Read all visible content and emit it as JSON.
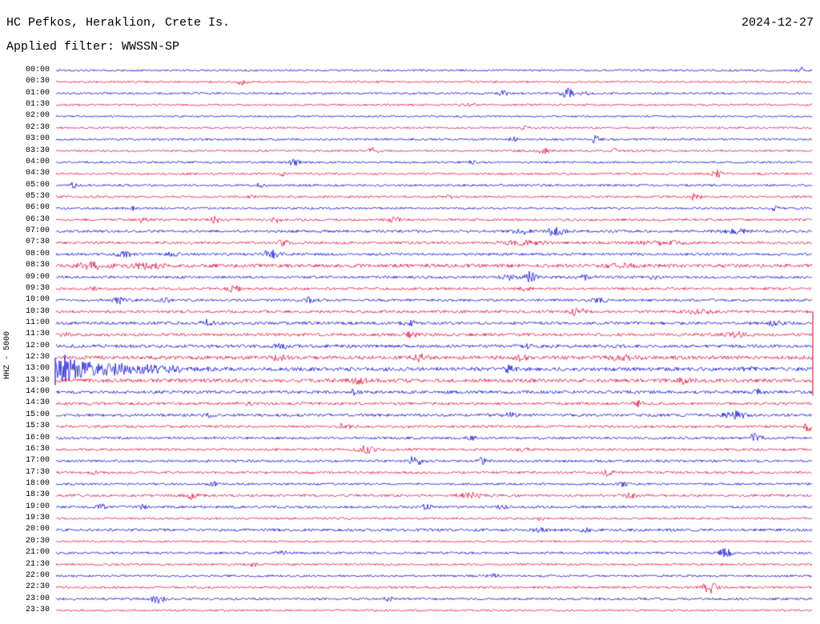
{
  "header": {
    "station_title": "HC Pefkos, Heraklion, Crete Is.",
    "date": "2024-12-27",
    "filter_label": "Applied filter: WWSSN-SP"
  },
  "axis": {
    "scale_label": "HHZ - 5000"
  },
  "chart_data": {
    "type": "seismogram-helicorder",
    "title": "HC Pefkos, Heraklion, Crete Is.",
    "date": "2024-12-27",
    "filter": "WWSSN-SP",
    "channel_scale": "HHZ - 5000",
    "row_interval_minutes": 30,
    "trace_color_order": [
      "blue",
      "red"
    ],
    "colors": {
      "blue": "#1212d0",
      "red": "#e01945",
      "text": "#000000",
      "background": "#ffffff"
    },
    "rows": [
      {
        "time": "00:00",
        "color": "blue",
        "noise": 1.2,
        "bursts": [
          [
            0.985,
            3.5,
            0.006
          ]
        ]
      },
      {
        "time": "00:30",
        "color": "red",
        "noise": 1.2,
        "bursts": [
          [
            0.247,
            4,
            0.006
          ]
        ]
      },
      {
        "time": "01:00",
        "color": "blue",
        "noise": 1.3,
        "bursts": [
          [
            0.592,
            3,
            0.006
          ],
          [
            0.676,
            6,
            0.008
          ],
          [
            0.7,
            3,
            0.005
          ]
        ]
      },
      {
        "time": "01:30",
        "color": "red",
        "noise": 1.2,
        "bursts": [
          [
            0.55,
            1.5,
            0.01
          ]
        ]
      },
      {
        "time": "02:00",
        "color": "blue",
        "noise": 1.1,
        "bursts": []
      },
      {
        "time": "02:30",
        "color": "red",
        "noise": 1.2,
        "bursts": [
          [
            0.62,
            1.8,
            0.006
          ]
        ]
      },
      {
        "time": "03:00",
        "color": "blue",
        "noise": 1.3,
        "bursts": [
          [
            0.605,
            2.5,
            0.005
          ],
          [
            0.712,
            4.5,
            0.007
          ]
        ]
      },
      {
        "time": "03:30",
        "color": "red",
        "noise": 1.3,
        "bursts": [
          [
            0.42,
            3.5,
            0.008
          ],
          [
            0.645,
            4,
            0.006
          ],
          [
            0.74,
            2.5,
            0.005
          ]
        ]
      },
      {
        "time": "04:00",
        "color": "blue",
        "noise": 1.3,
        "bursts": [
          [
            0.315,
            3.5,
            0.007
          ],
          [
            0.55,
            1.8,
            0.005
          ]
        ]
      },
      {
        "time": "04:30",
        "color": "red",
        "noise": 1.3,
        "bursts": [
          [
            0.3,
            2,
            0.005
          ],
          [
            0.875,
            4,
            0.007
          ]
        ]
      },
      {
        "time": "05:00",
        "color": "blue",
        "noise": 1.3,
        "bursts": [
          [
            0.022,
            3.5,
            0.005
          ],
          [
            0.27,
            2,
            0.005
          ]
        ]
      },
      {
        "time": "05:30",
        "color": "red",
        "noise": 1.3,
        "bursts": [
          [
            0.26,
            2,
            0.005
          ],
          [
            0.52,
            2,
            0.005
          ],
          [
            0.845,
            4,
            0.007
          ]
        ]
      },
      {
        "time": "06:00",
        "color": "blue",
        "noise": 1.3,
        "bursts": [
          [
            0.1,
            2.5,
            0.006
          ],
          [
            0.95,
            2.5,
            0.005
          ]
        ]
      },
      {
        "time": "06:30",
        "color": "red",
        "noise": 1.5,
        "bursts": [
          [
            0.115,
            3,
            0.006
          ],
          [
            0.21,
            3.5,
            0.007
          ],
          [
            0.29,
            4,
            0.008
          ],
          [
            0.445,
            4,
            0.008
          ]
        ]
      },
      {
        "time": "07:00",
        "color": "blue",
        "noise": 1.6,
        "bursts": [
          [
            0.615,
            3.5,
            0.01
          ],
          [
            0.66,
            5,
            0.012
          ],
          [
            0.9,
            2,
            0.02
          ]
        ]
      },
      {
        "time": "07:30",
        "color": "red",
        "noise": 1.6,
        "bursts": [
          [
            0.3,
            3,
            0.007
          ],
          [
            0.62,
            2.2,
            0.03
          ],
          [
            0.8,
            2.2,
            0.03
          ]
        ]
      },
      {
        "time": "08:00",
        "color": "blue",
        "noise": 1.6,
        "bursts": [
          [
            0.09,
            3,
            0.012
          ],
          [
            0.155,
            2.5,
            0.008
          ],
          [
            0.285,
            5,
            0.012
          ]
        ]
      },
      {
        "time": "08:30",
        "color": "red",
        "noise": 2.2,
        "bursts": [
          [
            0.05,
            3.5,
            0.02
          ],
          [
            0.12,
            3,
            0.02
          ],
          [
            0.75,
            2,
            0.02
          ]
        ]
      },
      {
        "time": "09:00",
        "color": "blue",
        "noise": 1.6,
        "bursts": [
          [
            0.6,
            3,
            0.01
          ],
          [
            0.627,
            6.5,
            0.007
          ],
          [
            0.7,
            2.5,
            0.01
          ],
          [
            0.79,
            2.5,
            0.006
          ]
        ]
      },
      {
        "time": "09:30",
        "color": "red",
        "noise": 1.5,
        "bursts": [
          [
            0.05,
            2,
            0.005
          ],
          [
            0.235,
            4,
            0.008
          ],
          [
            0.62,
            2,
            0.01
          ]
        ]
      },
      {
        "time": "10:00",
        "color": "blue",
        "noise": 1.6,
        "bursts": [
          [
            0.085,
            3.5,
            0.008
          ],
          [
            0.145,
            3,
            0.006
          ],
          [
            0.335,
            3.5,
            0.006
          ],
          [
            0.72,
            2,
            0.01
          ]
        ]
      },
      {
        "time": "10:30",
        "color": "red",
        "noise": 1.7,
        "bursts": [
          [
            0.69,
            5,
            0.008
          ],
          [
            0.85,
            2,
            0.02
          ]
        ]
      },
      {
        "time": "11:00",
        "color": "blue",
        "noise": 1.8,
        "bursts": [
          [
            0.2,
            4.5,
            0.007
          ],
          [
            0.47,
            2,
            0.01
          ],
          [
            0.95,
            2.5,
            0.01
          ]
        ]
      },
      {
        "time": "11:30",
        "color": "red",
        "noise": 1.9,
        "bursts": [
          [
            0.012,
            3,
            0.005
          ],
          [
            0.47,
            2.5,
            0.01
          ],
          [
            0.9,
            2.5,
            0.015
          ]
        ]
      },
      {
        "time": "12:00",
        "color": "blue",
        "noise": 2.0,
        "bursts": [
          [
            0.3,
            2.2,
            0.01
          ],
          [
            0.62,
            2.2,
            0.008
          ]
        ]
      },
      {
        "time": "12:30",
        "color": "red",
        "noise": 2.3,
        "bursts": [
          [
            0.295,
            4,
            0.008
          ],
          [
            0.48,
            4,
            0.008
          ],
          [
            0.615,
            4.5,
            0.006
          ],
          [
            0.75,
            2.5,
            0.02
          ]
        ]
      },
      {
        "time": "13:00",
        "color": "blue",
        "noise": 2.3,
        "bursts": [
          [
            0.008,
            14,
            0.012
          ],
          [
            0.03,
            8,
            0.02
          ],
          [
            0.07,
            5,
            0.03
          ],
          [
            0.13,
            3.5,
            0.05
          ],
          [
            0.6,
            4,
            0.006
          ],
          [
            0.92,
            2.5,
            0.01
          ]
        ]
      },
      {
        "time": "13:30",
        "color": "red",
        "noise": 2.3,
        "bursts": [
          [
            0.4,
            2.5,
            0.01
          ],
          [
            0.83,
            3,
            0.008
          ]
        ]
      },
      {
        "time": "14:00",
        "color": "blue",
        "noise": 1.9,
        "bursts": [
          [
            0.395,
            4,
            0.006
          ],
          [
            0.93,
            3,
            0.006
          ]
        ]
      },
      {
        "time": "14:30",
        "color": "red",
        "noise": 1.7,
        "bursts": [
          [
            0.25,
            2,
            0.008
          ],
          [
            0.77,
            3,
            0.006
          ]
        ]
      },
      {
        "time": "15:00",
        "color": "blue",
        "noise": 1.7,
        "bursts": [
          [
            0.205,
            3,
            0.007
          ],
          [
            0.6,
            2,
            0.01
          ],
          [
            0.9,
            4,
            0.015
          ]
        ]
      },
      {
        "time": "15:30",
        "color": "red",
        "noise": 1.6,
        "bursts": [
          [
            0.38,
            4,
            0.007
          ],
          [
            0.995,
            5,
            0.006
          ]
        ]
      },
      {
        "time": "16:00",
        "color": "blue",
        "noise": 1.5,
        "bursts": [
          [
            0.55,
            2,
            0.01
          ],
          [
            0.925,
            5,
            0.008
          ]
        ]
      },
      {
        "time": "16:30",
        "color": "red",
        "noise": 1.5,
        "bursts": [
          [
            0.41,
            4,
            0.01
          ],
          [
            0.62,
            2,
            0.008
          ]
        ]
      },
      {
        "time": "17:00",
        "color": "blue",
        "noise": 1.5,
        "bursts": [
          [
            0.475,
            6,
            0.008
          ],
          [
            0.565,
            4,
            0.007
          ]
        ]
      },
      {
        "time": "17:30",
        "color": "red",
        "noise": 1.5,
        "bursts": [
          [
            0.05,
            2,
            0.006
          ],
          [
            0.73,
            3.5,
            0.007
          ]
        ]
      },
      {
        "time": "18:00",
        "color": "blue",
        "noise": 1.4,
        "bursts": [
          [
            0.21,
            2.5,
            0.006
          ],
          [
            0.75,
            2.5,
            0.006
          ]
        ]
      },
      {
        "time": "18:30",
        "color": "red",
        "noise": 1.6,
        "bursts": [
          [
            0.18,
            4,
            0.008
          ],
          [
            0.55,
            2.5,
            0.015
          ],
          [
            0.76,
            3,
            0.007
          ]
        ]
      },
      {
        "time": "19:00",
        "color": "blue",
        "noise": 1.5,
        "bursts": [
          [
            0.06,
            3,
            0.006
          ],
          [
            0.115,
            2.5,
            0.005
          ],
          [
            0.49,
            3,
            0.007
          ],
          [
            0.59,
            3,
            0.006
          ]
        ]
      },
      {
        "time": "19:30",
        "color": "red",
        "noise": 1.3,
        "bursts": [
          [
            0.64,
            2,
            0.006
          ]
        ]
      },
      {
        "time": "20:00",
        "color": "blue",
        "noise": 1.7,
        "bursts": [
          [
            0.64,
            2.2,
            0.01
          ],
          [
            0.7,
            2.2,
            0.008
          ]
        ]
      },
      {
        "time": "20:30",
        "color": "red",
        "noise": 1.2,
        "bursts": []
      },
      {
        "time": "21:00",
        "color": "blue",
        "noise": 1.4,
        "bursts": [
          [
            0.3,
            2,
            0.006
          ],
          [
            0.885,
            5,
            0.008
          ]
        ]
      },
      {
        "time": "21:30",
        "color": "red",
        "noise": 1.3,
        "bursts": [
          [
            0.26,
            2.2,
            0.006
          ]
        ]
      },
      {
        "time": "22:00",
        "color": "blue",
        "noise": 1.3,
        "bursts": [
          [
            0.58,
            2,
            0.008
          ]
        ]
      },
      {
        "time": "22:30",
        "color": "red",
        "noise": 1.4,
        "bursts": [
          [
            0.865,
            7,
            0.009
          ]
        ]
      },
      {
        "time": "23:00",
        "color": "blue",
        "noise": 1.4,
        "bursts": [
          [
            0.135,
            6,
            0.009
          ],
          [
            0.44,
            2.5,
            0.006
          ]
        ]
      },
      {
        "time": "23:30",
        "color": "red",
        "noise": 1.2,
        "bursts": []
      }
    ],
    "clip_marks": [
      {
        "edge": "right",
        "from_row": 21,
        "to_row": 28.3,
        "color": "red"
      },
      {
        "edge": "left",
        "from_row": 25,
        "to_row": 27.4,
        "color": "blue"
      }
    ]
  }
}
